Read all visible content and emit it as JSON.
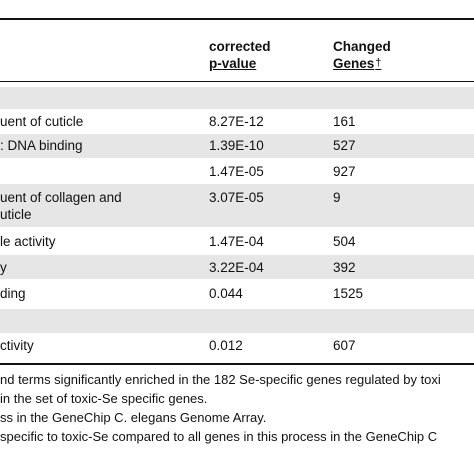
{
  "table": {
    "header": {
      "pvalue_line1": "corrected",
      "pvalue_line2": "p-value",
      "genes_line1": "Changed",
      "genes_line2": "Genes",
      "genes_dagger": "†"
    },
    "rows": [
      {
        "term": "uent of cuticle",
        "term2": "",
        "pvalue": "8.27E-12",
        "genes": "161"
      },
      {
        "term": ": DNA binding",
        "term2": "",
        "pvalue": "1.39E-10",
        "genes": "527"
      },
      {
        "term": "",
        "term2": "",
        "pvalue": "1.47E-05",
        "genes": "927"
      },
      {
        "term": "uent of collagen and",
        "term2": "uticle",
        "pvalue": "3.07E-05",
        "genes": "9"
      },
      {
        "term": "le activity",
        "term2": "",
        "pvalue": "1.47E-04",
        "genes": "504"
      },
      {
        "term": "y",
        "term2": "",
        "pvalue": "3.22E-04",
        "genes": "392"
      },
      {
        "term": "ding",
        "term2": "",
        "pvalue": "0.044",
        "genes": "1525"
      },
      {
        "term": "ctivity",
        "term2": "",
        "pvalue": "0.012",
        "genes": "607"
      }
    ]
  },
  "footnotes": [
    "nd terms significantly enriched in the 182 Se-specific genes regulated by toxi",
    "in the set of toxic-Se specific genes.",
    "ss in the GeneChip C. elegans Genome Array.",
    "specific to toxic-Se compared to all genes in this process in the GeneChip C"
  ],
  "colors": {
    "category_band": "#e6e6e6",
    "rule": "#111111",
    "text": "#111111"
  }
}
